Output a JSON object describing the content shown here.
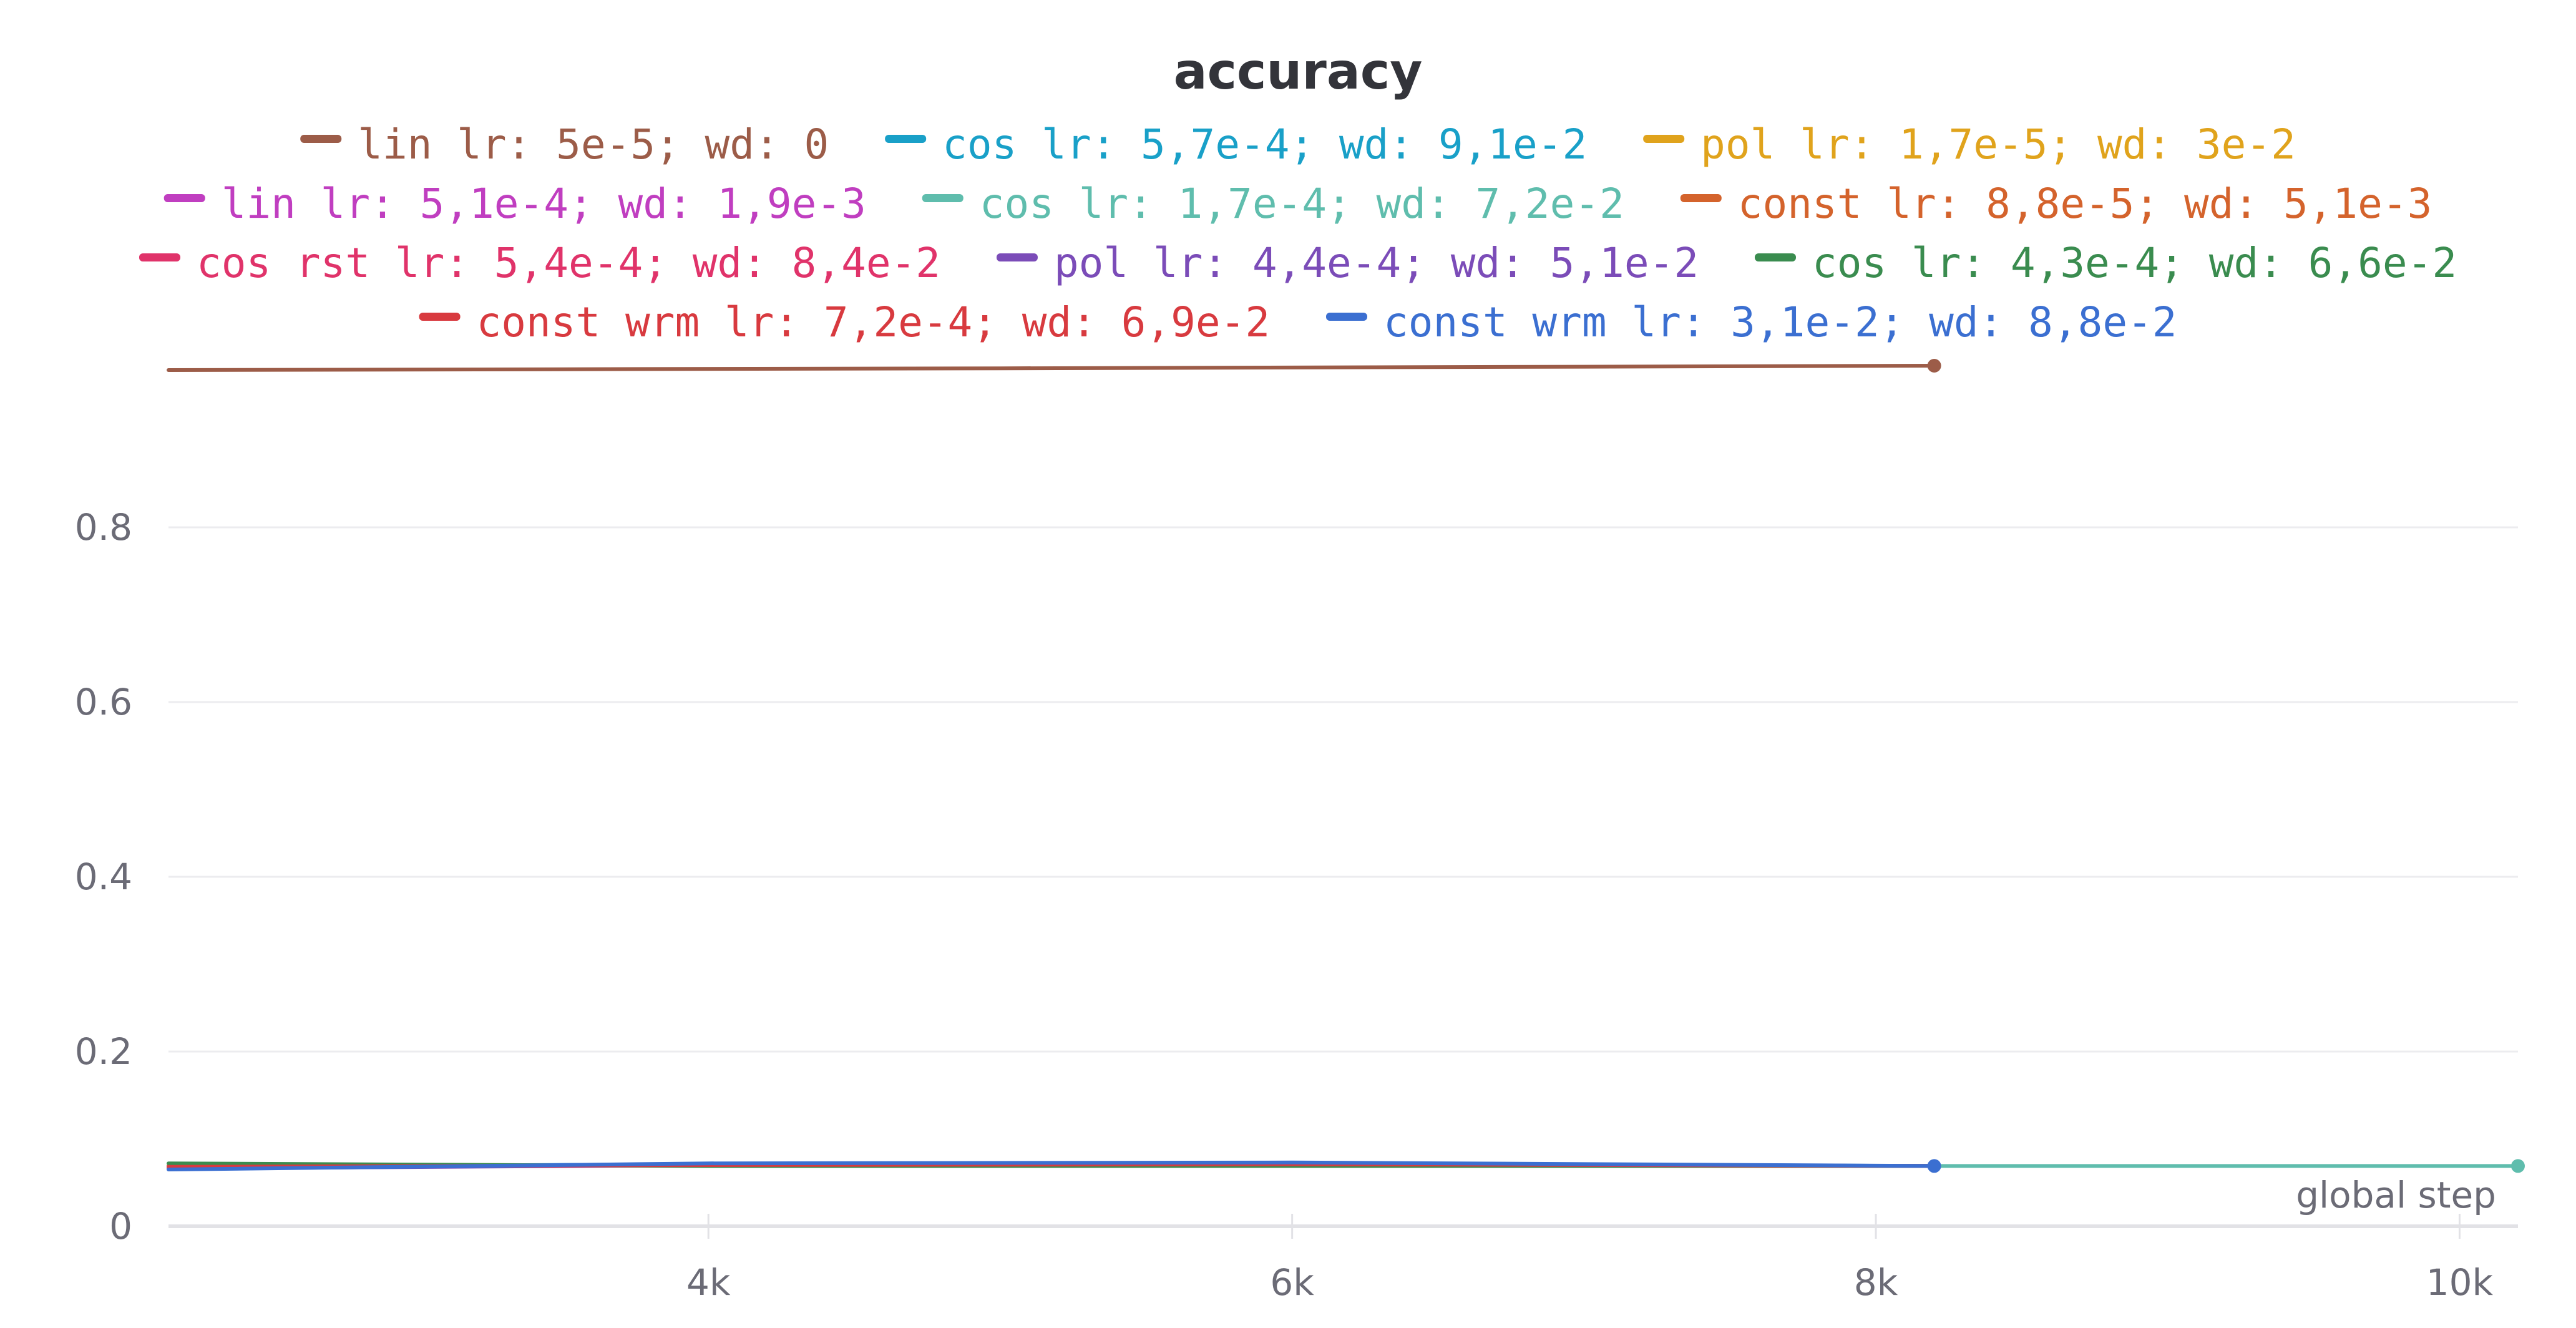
{
  "chart_data": {
    "type": "line",
    "title": "accuracy",
    "xlabel": "global step",
    "ylabel": "",
    "xlim": [
      2150,
      10200
    ],
    "ylim": [
      0,
      0.8
    ],
    "x_ticks": [
      4000,
      6000,
      8000,
      10000
    ],
    "x_tick_labels": [
      "4k",
      "6k",
      "8k",
      "10k"
    ],
    "y_ticks": [
      0,
      0.2,
      0.4,
      0.6,
      0.8
    ],
    "y_tick_labels": [
      "0",
      "0.2",
      "0.4",
      "0.6",
      "0.8"
    ],
    "grid": true,
    "legend_position": "top",
    "legend_rows": [
      [
        0,
        1,
        2
      ],
      [
        3,
        4,
        5
      ],
      [
        6,
        7,
        8
      ],
      [
        9,
        10
      ]
    ],
    "series": [
      {
        "name": "lin lr: 5e-5; wd: 0",
        "color": "#9c5c48",
        "x": [
          2150,
          5000,
          8200
        ],
        "y": [
          0.98,
          0.982,
          0.985
        ],
        "end_marker": true
      },
      {
        "name": "cos lr: 5,7e-4; wd: 9,1e-2",
        "color": "#19a0c8",
        "x": [
          2150,
          4000,
          6000,
          8200
        ],
        "y": [
          0.068,
          0.071,
          0.072,
          0.069
        ],
        "end_marker": false
      },
      {
        "name": "pol lr: 1,7e-5; wd: 3e-2",
        "color": "#e0a31c",
        "x": [
          2150,
          4000,
          6000,
          8200
        ],
        "y": [
          0.069,
          0.07,
          0.071,
          0.069
        ],
        "end_marker": false
      },
      {
        "name": "lin lr: 5,1e-4; wd: 1,9e-3",
        "color": "#c03ec0",
        "x": [
          2150,
          4000,
          6000,
          8200
        ],
        "y": [
          0.067,
          0.07,
          0.071,
          0.069
        ],
        "end_marker": false
      },
      {
        "name": "cos lr: 1,7e-4; wd: 7,2e-2",
        "color": "#5fbdad",
        "x": [
          2150,
          4000,
          6000,
          8200,
          10200
        ],
        "y": [
          0.069,
          0.07,
          0.07,
          0.069,
          0.069
        ],
        "end_marker": true
      },
      {
        "name": "const lr: 8,8e-5; wd: 5,1e-3",
        "color": "#d4632c",
        "x": [
          2150,
          4000,
          6000,
          8200
        ],
        "y": [
          0.069,
          0.07,
          0.07,
          0.069
        ],
        "end_marker": false
      },
      {
        "name": "cos rst lr: 5,4e-4; wd: 8,4e-2",
        "color": "#e0336a",
        "x": [
          2150,
          4000,
          6000,
          8200
        ],
        "y": [
          0.068,
          0.07,
          0.071,
          0.069
        ],
        "end_marker": false
      },
      {
        "name": "pol lr: 4,4e-4; wd: 5,1e-2",
        "color": "#7b4cb8",
        "x": [
          2150,
          4000,
          6000,
          8200
        ],
        "y": [
          0.066,
          0.07,
          0.071,
          0.069
        ],
        "end_marker": false
      },
      {
        "name": "cos lr: 4,3e-4; wd: 6,6e-2",
        "color": "#3a8c4f",
        "x": [
          2150,
          4000,
          6000,
          8200
        ],
        "y": [
          0.072,
          0.069,
          0.069,
          0.069
        ],
        "end_marker": false
      },
      {
        "name": "const wrm lr: 7,2e-4; wd: 6,9e-2",
        "color": "#d83a3f",
        "x": [
          2150,
          4000,
          6000,
          8200
        ],
        "y": [
          0.068,
          0.07,
          0.071,
          0.069
        ],
        "end_marker": false
      },
      {
        "name": "const wrm lr: 3,1e-2; wd: 8,8e-2",
        "color": "#3b6fd1",
        "x": [
          2150,
          4000,
          6000,
          8200
        ],
        "y": [
          0.065,
          0.072,
          0.073,
          0.069
        ],
        "end_marker": true
      }
    ]
  }
}
